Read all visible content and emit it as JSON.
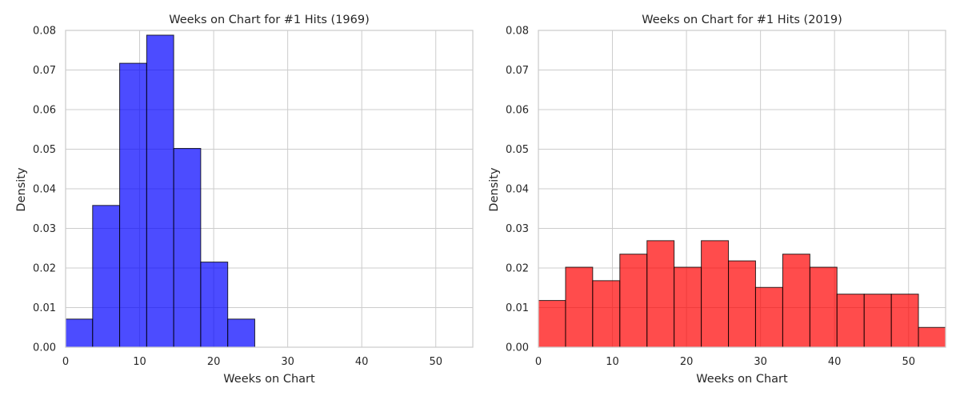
{
  "chart_data": [
    {
      "type": "bar",
      "title": "Weeks on Chart for #1 Hits (1969)",
      "xlabel": "Weeks on Chart",
      "ylabel": "Density",
      "xlim": [
        0,
        55
      ],
      "ylim": [
        0,
        0.08
      ],
      "xticks": [
        "0",
        "10",
        "20",
        "30",
        "40",
        "50"
      ],
      "yticks": [
        "0.00",
        "0.01",
        "0.02",
        "0.03",
        "0.04",
        "0.05",
        "0.06",
        "0.07",
        "0.08"
      ],
      "grid": true,
      "color": "#0000ff",
      "bin_edges": [
        0,
        3.65,
        7.3,
        10.95,
        14.6,
        18.25,
        21.9,
        25.55
      ],
      "values": [
        0.0071,
        0.0358,
        0.0717,
        0.0788,
        0.0502,
        0.0215,
        0.0071
      ]
    },
    {
      "type": "bar",
      "title": "Weeks on Chart for #1 Hits (2019)",
      "xlabel": "Weeks on Chart",
      "ylabel": "Density",
      "xlim": [
        0,
        55
      ],
      "ylim": [
        0,
        0.08
      ],
      "xticks": [
        "0",
        "10",
        "20",
        "30",
        "40",
        "50"
      ],
      "yticks": [
        "0.00",
        "0.01",
        "0.02",
        "0.03",
        "0.04",
        "0.05",
        "0.06",
        "0.07",
        "0.08"
      ],
      "grid": true,
      "color": "#ff0000",
      "bin_edges": [
        0,
        3.67,
        7.33,
        11.0,
        14.67,
        18.33,
        22.0,
        25.67,
        29.33,
        33.0,
        36.67,
        40.33,
        44.0,
        47.67,
        51.33,
        55.0
      ],
      "values": [
        0.0118,
        0.0202,
        0.0168,
        0.0235,
        0.0269,
        0.0202,
        0.0269,
        0.0218,
        0.0151,
        0.0235,
        0.0202,
        0.0134,
        0.0134,
        0.0134,
        0.005
      ]
    }
  ]
}
